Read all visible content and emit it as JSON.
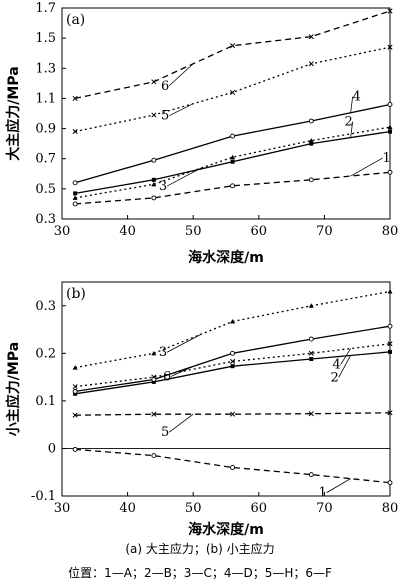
{
  "caption": "(a) 大主应力；(b) 小主应力",
  "legend_text": "位置：1—A；2—B；3—C；4—D；5—H；6—F",
  "chart_data": [
    {
      "type": "line",
      "panel_label": "(a)",
      "xlabel": "海水深度/m",
      "ylabel": "大主应力/MPa",
      "xlim": [
        30,
        80
      ],
      "ylim": [
        0.3,
        1.7
      ],
      "xticks": [
        30,
        40,
        50,
        60,
        70,
        80
      ],
      "yticks": [
        0.3,
        0.5,
        0.7,
        0.9,
        1.1,
        1.3,
        1.5,
        1.7
      ],
      "x": [
        32,
        44,
        56,
        68,
        80
      ],
      "series": [
        {
          "name": "1",
          "values": [
            0.4,
            0.44,
            0.52,
            0.56,
            0.61
          ],
          "style": "dashed",
          "marker": "circle"
        },
        {
          "name": "2",
          "values": [
            0.47,
            0.56,
            0.68,
            0.8,
            0.88
          ],
          "style": "solid",
          "marker": "square"
        },
        {
          "name": "3",
          "values": [
            0.44,
            0.53,
            0.71,
            0.82,
            0.91
          ],
          "style": "dotted",
          "marker": "triangle"
        },
        {
          "name": "4",
          "values": [
            0.54,
            0.69,
            0.85,
            0.95,
            1.06
          ],
          "style": "solid",
          "marker": "circle"
        },
        {
          "name": "5",
          "values": [
            0.88,
            0.99,
            1.14,
            1.33,
            1.44
          ],
          "style": "dotted",
          "marker": "x"
        },
        {
          "name": "6",
          "values": [
            1.1,
            1.21,
            1.45,
            1.51,
            1.68
          ],
          "style": "dashed",
          "marker": "x"
        }
      ]
    },
    {
      "type": "line",
      "panel_label": "(b)",
      "xlabel": "海水深度/m",
      "ylabel": "小主应力/MPa",
      "xlim": [
        30,
        80
      ],
      "ylim": [
        -0.1,
        0.35
      ],
      "xticks": [
        30,
        40,
        50,
        60,
        70,
        80
      ],
      "yticks": [
        -0.1,
        0,
        0.1,
        0.2,
        0.3
      ],
      "x": [
        32,
        44,
        56,
        68,
        80
      ],
      "series": [
        {
          "name": "1",
          "values": [
            -0.002,
            -0.015,
            -0.04,
            -0.055,
            -0.072
          ],
          "style": "dashed",
          "marker": "circle"
        },
        {
          "name": "2",
          "values": [
            0.115,
            0.14,
            0.173,
            0.188,
            0.203
          ],
          "style": "solid",
          "marker": "square"
        },
        {
          "name": "3",
          "values": [
            0.17,
            0.2,
            0.267,
            0.3,
            0.33
          ],
          "style": "dotted",
          "marker": "triangle"
        },
        {
          "name": "4",
          "values": [
            0.13,
            0.15,
            0.183,
            0.2,
            0.22
          ],
          "style": "dotted",
          "marker": "x"
        },
        {
          "name": "5",
          "values": [
            0.07,
            0.072,
            0.072,
            0.073,
            0.075
          ],
          "style": "dashed",
          "marker": "x"
        },
        {
          "name": "6",
          "values": [
            0.12,
            0.145,
            0.2,
            0.23,
            0.257
          ],
          "style": "solid",
          "marker": "circle"
        }
      ]
    }
  ]
}
